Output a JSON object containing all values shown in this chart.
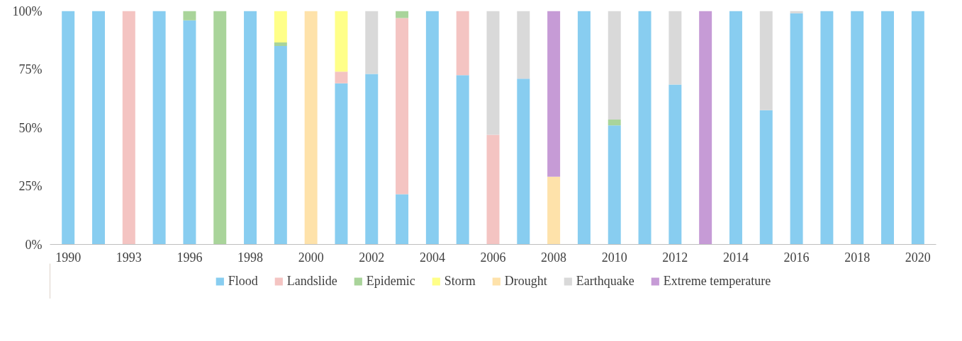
{
  "chart_data": {
    "type": "bar",
    "stacked": true,
    "categories": [
      "1990",
      null,
      "1993",
      null,
      "1996",
      null,
      "1998",
      null,
      "2000",
      null,
      "2002",
      null,
      "2004",
      null,
      "2006",
      null,
      "2008",
      null,
      "2010",
      null,
      "2012",
      null,
      "2014",
      null,
      "2016",
      null,
      "2018",
      null,
      "2020"
    ],
    "series": [
      {
        "name": "Flood",
        "color": "#88cdf0",
        "values": [
          100,
          100,
          0,
          100,
          96,
          0,
          100,
          85,
          0,
          69,
          73,
          21.5,
          100,
          72.5,
          0,
          71,
          0,
          100,
          51,
          100,
          68.5,
          0,
          100,
          57.5,
          99,
          100,
          100,
          100,
          100
        ]
      },
      {
        "name": "Landslide",
        "color": "#f4c4c2",
        "values": [
          0,
          0,
          100,
          0,
          0,
          0,
          0,
          0,
          0,
          5,
          0,
          75.5,
          0,
          27.5,
          47,
          0,
          0,
          0,
          0,
          0,
          0,
          0,
          0,
          0,
          0,
          0,
          0,
          0,
          0
        ]
      },
      {
        "name": "Epidemic",
        "color": "#a9d49a",
        "values": [
          0,
          0,
          0,
          0,
          4,
          100,
          0,
          1.5,
          0,
          0,
          0,
          3,
          0,
          0,
          0,
          0,
          0,
          0,
          2.5,
          0,
          0,
          0,
          0,
          0,
          0,
          0,
          0,
          0,
          0
        ]
      },
      {
        "name": "Storm",
        "color": "#ffff88",
        "values": [
          0,
          0,
          0,
          0,
          0,
          0,
          0,
          13.5,
          0,
          26,
          0,
          0,
          0,
          0,
          0,
          0,
          0,
          0,
          0,
          0,
          0,
          0,
          0,
          0,
          0,
          0,
          0,
          0,
          0
        ]
      },
      {
        "name": "Drought",
        "color": "#fee2aa",
        "values": [
          0,
          0,
          0,
          0,
          0,
          0,
          0,
          0,
          100,
          0,
          0,
          0,
          0,
          0,
          0,
          0,
          29,
          0,
          0,
          0,
          0,
          0,
          0,
          0,
          0,
          0,
          0,
          0,
          0
        ]
      },
      {
        "name": "Earthquake",
        "color": "#d9d9d9",
        "values": [
          0,
          0,
          0,
          0,
          0,
          0,
          0,
          0,
          0,
          0,
          27,
          0,
          0,
          0,
          53,
          29,
          0,
          0,
          46.5,
          0,
          31.5,
          0,
          0,
          42.5,
          1,
          0,
          0,
          0,
          0
        ]
      },
      {
        "name": "Extreme temperature",
        "color": "#c69bd6",
        "values": [
          0,
          0,
          0,
          0,
          0,
          0,
          0,
          0,
          0,
          0,
          0,
          0,
          0,
          0,
          0,
          0,
          71,
          0,
          0,
          0,
          0,
          100,
          0,
          0,
          0,
          0,
          0,
          0,
          0
        ]
      }
    ],
    "ylim": [
      0,
      100
    ],
    "yticks": [
      {
        "value": 0,
        "label": "0%"
      },
      {
        "value": 25,
        "label": "25%"
      },
      {
        "value": 50,
        "label": "50%"
      },
      {
        "value": 75,
        "label": "75%"
      },
      {
        "value": 100,
        "label": "100%"
      }
    ],
    "grid": false,
    "legend": "bottom"
  }
}
